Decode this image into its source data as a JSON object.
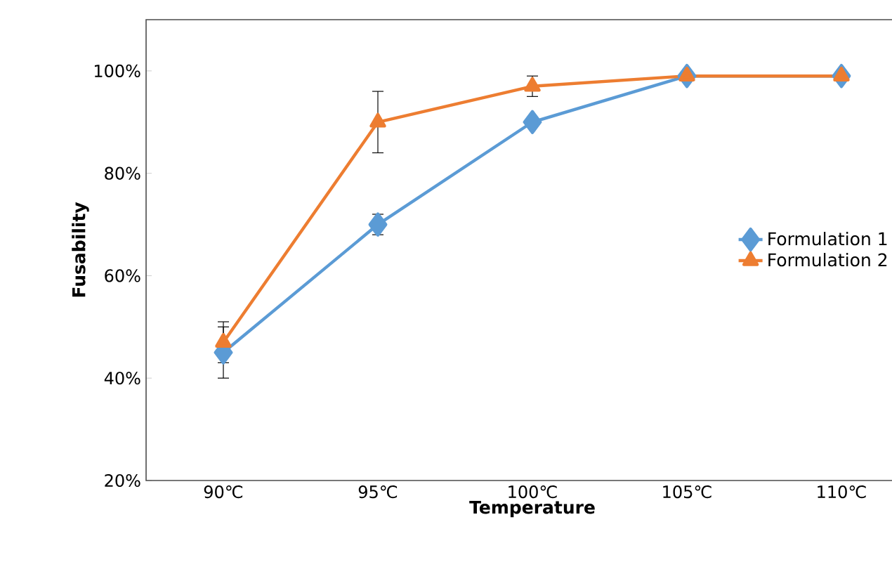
{
  "chart_data": {
    "type": "line",
    "xlabel": "Temperature",
    "ylabel": "Fusability",
    "categories": [
      "90℃",
      "95℃",
      "100℃",
      "105℃",
      "110℃"
    ],
    "series": [
      {
        "name": "Formulation 1",
        "color": "#5b9bd5",
        "marker": "diamond",
        "values": [
          45,
          70,
          90,
          99,
          99
        ],
        "errors": [
          5,
          2,
          null,
          null,
          null
        ]
      },
      {
        "name": "Formulation 2",
        "color": "#ed7d31",
        "marker": "triangle",
        "values": [
          47,
          90,
          97,
          99,
          99
        ],
        "errors": [
          4,
          6,
          2,
          null,
          null
        ]
      }
    ],
    "ylim": [
      20,
      110
    ],
    "yticks": [
      {
        "value": 20,
        "label": "20%"
      },
      {
        "value": 40,
        "label": "40%"
      },
      {
        "value": 60,
        "label": "60%"
      },
      {
        "value": 80,
        "label": "80%"
      },
      {
        "value": 100,
        "label": "100%"
      }
    ],
    "grid": false,
    "legend": "right",
    "line_style": "solid"
  }
}
